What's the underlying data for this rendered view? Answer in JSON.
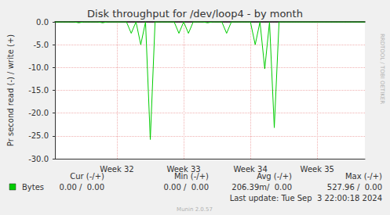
{
  "chart_data": {
    "type": "line",
    "title": "Disk throughput for /dev/loop4 - by month",
    "ylabel": "Pr second read (-) / write (+)",
    "categories": [
      null,
      null,
      null,
      null,
      null,
      null,
      null,
      null,
      null,
      null,
      null,
      null,
      null,
      "Week 32",
      null,
      null,
      null,
      null,
      null,
      null,
      null,
      null,
      null,
      null,
      null,
      null,
      null,
      "Week 33",
      null,
      null,
      null,
      null,
      null,
      null,
      null,
      null,
      null,
      null,
      null,
      null,
      null,
      "Week 34",
      null,
      null,
      null,
      null,
      null,
      null,
      null,
      null,
      null,
      null,
      null,
      null,
      null,
      "Week 35",
      null,
      null,
      null,
      null,
      null,
      null,
      null,
      null,
      null,
      null
    ],
    "series": [
      {
        "name": "Bytes",
        "color": "#00cc00",
        "values": [
          0,
          0,
          0,
          0,
          0,
          -0.2,
          0,
          0,
          0,
          0,
          -0.2,
          0,
          0,
          0,
          0,
          0,
          -2.5,
          0,
          -5,
          0,
          -25.8,
          0,
          0,
          0,
          0,
          0,
          -2.5,
          0,
          -2.5,
          0,
          0,
          0,
          -0.2,
          0,
          0,
          0,
          -2.5,
          0,
          0,
          0,
          0,
          0,
          -5,
          0,
          -10.3,
          0,
          -23.2,
          0,
          0,
          0,
          0,
          0,
          0,
          0,
          0,
          0,
          0,
          0,
          0,
          0,
          0,
          0,
          0,
          0,
          0,
          0
        ]
      }
    ],
    "ylim": [
      -30,
      0
    ],
    "yticks": [
      {
        "value": -30,
        "label": "-30.0"
      },
      {
        "value": -25,
        "label": "-25.0"
      },
      {
        "value": -20,
        "label": "-20.0"
      },
      {
        "value": -15,
        "label": "-15.0"
      },
      {
        "value": -10,
        "label": "-10.0"
      },
      {
        "value": -5,
        "label": "-5.0"
      },
      {
        "value": 0,
        "label": "0.0"
      }
    ],
    "grid": true,
    "annotations": [
      "RRDTOOL / TOBI OETIKER"
    ]
  },
  "legend_table": {
    "headers": [
      "Cur (-/+)",
      "Min (-/+)",
      "Avg (-/+)",
      "Max (-/+)"
    ],
    "rows": [
      {
        "name": "Bytes",
        "cells": [
          "0.00 /  0.00",
          "0.00 /  0.00",
          "206.39m/  0.00",
          "527.96 /  0.00"
        ]
      }
    ]
  },
  "footer": {
    "last_update": "Last update: Tue Sep  3 22:00:18 2024",
    "generator": "Munin 2.0.57"
  }
}
